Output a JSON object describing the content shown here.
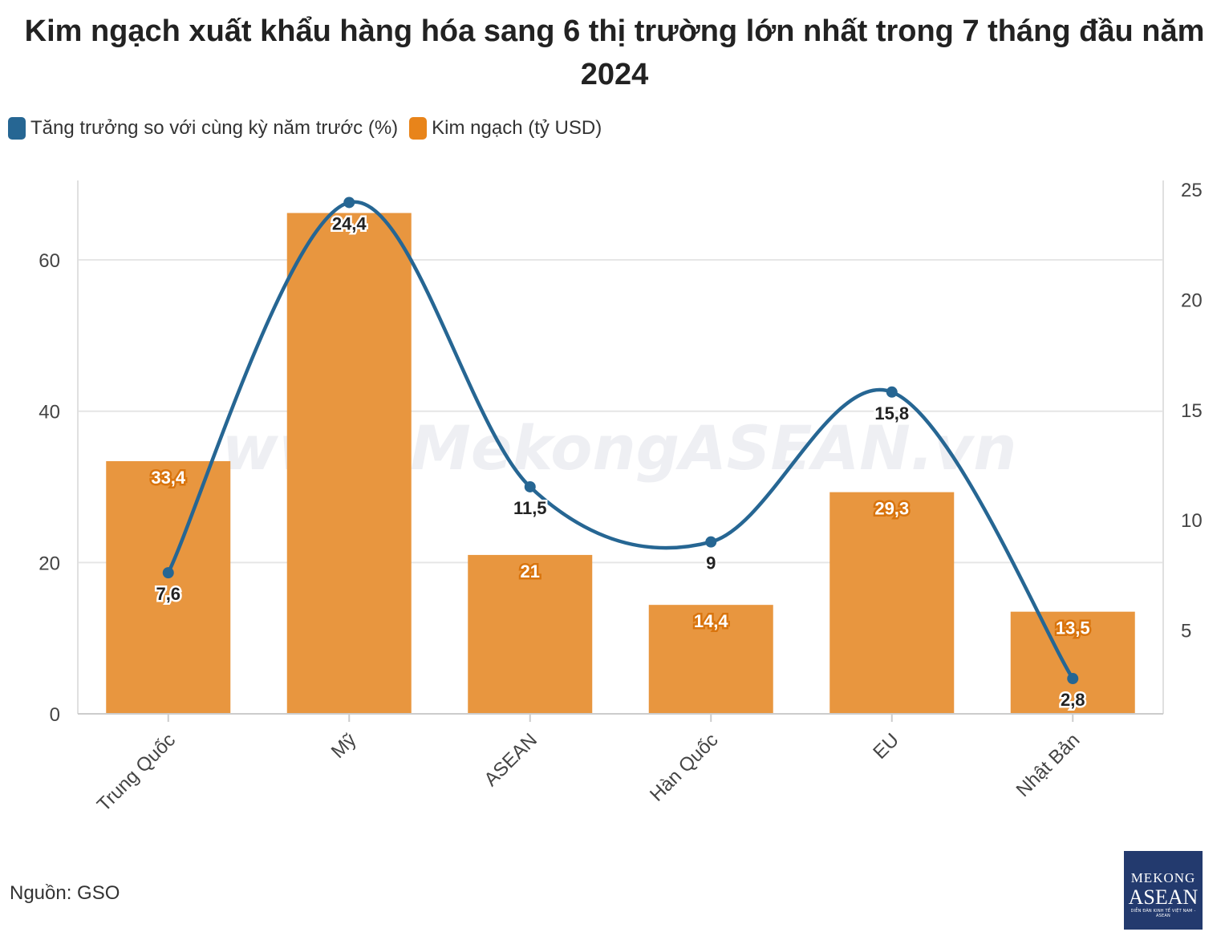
{
  "title": "Kim ngạch xuất khẩu hàng hóa sang 6 thị trường lớn nhất trong 7 tháng đầu năm 2024",
  "watermark": "www.MekongASEAN.vn",
  "source": "Nguồn: GSO",
  "logo": {
    "line1": "MEKONG",
    "line2": "ASEAN",
    "line3": "DIỄN ĐÀN KINH TẾ VIỆT NAM - ASEAN"
  },
  "colors": {
    "bar": "#e8963f",
    "line": "#266693",
    "grid": "#e6e6e6"
  },
  "chart_data": {
    "type": "bar",
    "title": "Kim ngạch xuất khẩu hàng hóa sang 6 thị trường lớn nhất trong 7 tháng đầu năm 2024",
    "categories": [
      "Trung Quốc",
      "Mỹ",
      "ASEAN",
      "Hàn Quốc",
      "EU",
      "Nhật Bản"
    ],
    "series": [
      {
        "name": "Tăng trưởng so với cùng kỳ năm trước (%)",
        "type": "line",
        "axis": "right",
        "values": [
          7.6,
          24.4,
          11.5,
          9,
          15.8,
          2.8
        ],
        "labels": [
          "7,6",
          "24,4",
          "11,5",
          "9",
          "15,8",
          "2,8"
        ]
      },
      {
        "name": "Kim ngạch (tỷ USD)",
        "type": "bar",
        "axis": "left",
        "values": [
          33.4,
          66.2,
          21,
          14.4,
          29.3,
          13.5
        ],
        "labels": [
          "33,4",
          "",
          "21",
          "14,4",
          "29,3",
          "13,5"
        ]
      }
    ],
    "y_left": {
      "ticks": [
        "0",
        "20",
        "40",
        "60"
      ],
      "tick_values": [
        0,
        20,
        40,
        60
      ],
      "lim": [
        0,
        70.5
      ]
    },
    "y_right": {
      "ticks": [
        "5",
        "10",
        "15",
        "20",
        "25"
      ],
      "tick_values": [
        5,
        10,
        15,
        20,
        25
      ],
      "lim": [
        1.2,
        25.4
      ]
    },
    "grid": true,
    "legend_position": "top-left"
  }
}
